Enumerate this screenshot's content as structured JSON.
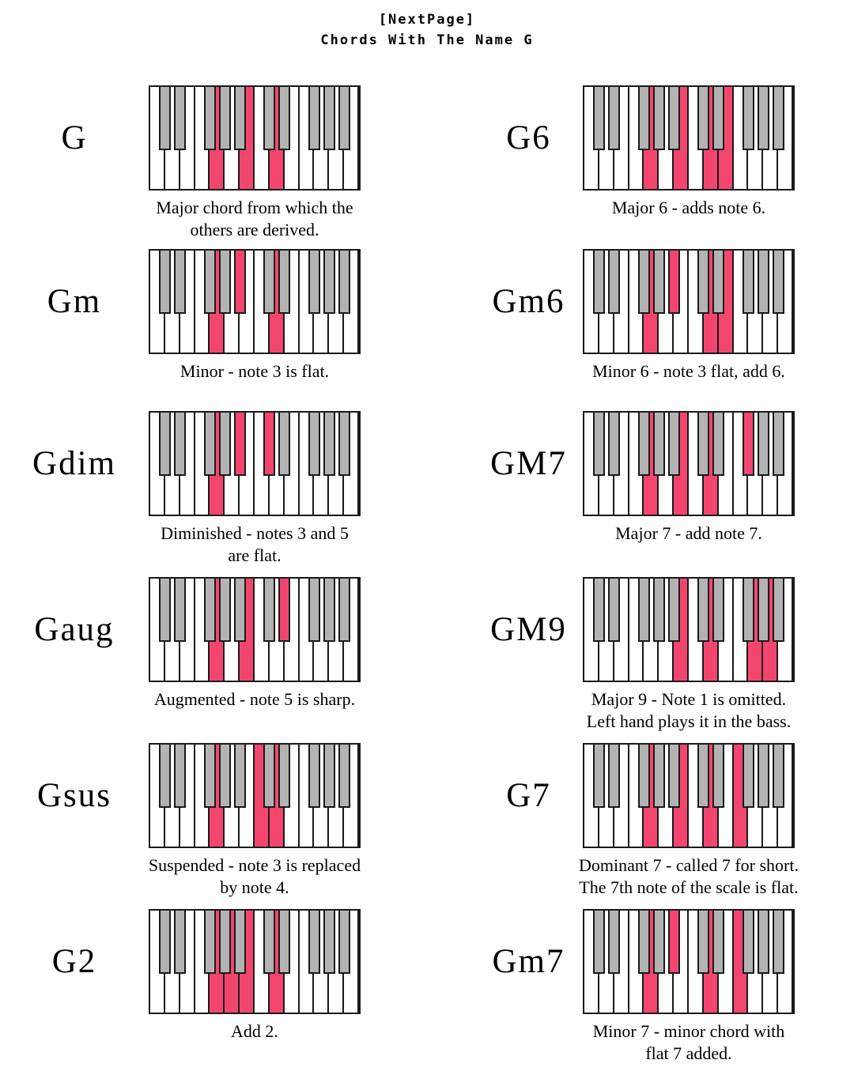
{
  "page": {
    "header": "[NextPage]",
    "title": "Chords With The Name G"
  },
  "colors": {
    "highlight_pink": "#f3466f",
    "black_key_gray": "#b3b3b3",
    "key_border": "#1a1a1a"
  },
  "keyboard": {
    "white_note_names": [
      "C",
      "D",
      "E",
      "F",
      "G",
      "A",
      "B",
      "C",
      "D",
      "E",
      "F",
      "G",
      "A",
      "B"
    ],
    "black_after_white": [
      1,
      2,
      4,
      5,
      6,
      8,
      9,
      11,
      12,
      13
    ],
    "black_note_names": [
      "C#",
      "D#",
      "F#",
      "G#",
      "A#",
      "C#",
      "D#",
      "F#",
      "G#",
      "A#"
    ]
  },
  "chords": [
    {
      "label": "G",
      "column": "left",
      "white_highlights": [
        5,
        7,
        9
      ],
      "black_highlights": [],
      "caption_lines": [
        "Major chord from which the",
        "others are derived."
      ]
    },
    {
      "label": "G6",
      "column": "right",
      "white_highlights": [
        5,
        7,
        9,
        10
      ],
      "black_highlights": [],
      "caption_lines": [
        "Major 6 - adds note 6."
      ]
    },
    {
      "label": "Gm",
      "column": "left",
      "white_highlights": [
        5,
        9
      ],
      "black_highlights": [
        6
      ],
      "caption_lines": [
        "Minor - note 3 is flat."
      ]
    },
    {
      "label": "Gm6",
      "column": "right",
      "white_highlights": [
        5,
        9,
        10
      ],
      "black_highlights": [
        6
      ],
      "caption_lines": [
        "Minor 6 - note 3 flat, add 6."
      ]
    },
    {
      "label": "Gdim",
      "column": "left",
      "white_highlights": [
        5
      ],
      "black_highlights": [
        6,
        8
      ],
      "caption_lines": [
        "Diminished - notes 3 and 5",
        "are flat."
      ]
    },
    {
      "label": "GM7",
      "column": "right",
      "white_highlights": [
        5,
        7,
        9
      ],
      "black_highlights": [
        11
      ],
      "caption_lines": [
        "Major 7 - add note 7."
      ]
    },
    {
      "label": "Gaug",
      "column": "left",
      "white_highlights": [
        5,
        7
      ],
      "black_highlights": [
        9
      ],
      "caption_lines": [
        "Augmented - note 5 is sharp."
      ]
    },
    {
      "label": "GM9",
      "column": "right",
      "white_highlights": [
        7,
        9,
        12,
        13
      ],
      "black_highlights": [],
      "caption_lines": [
        "Major 9 - Note 1 is omitted.",
        "Left hand plays it in the bass."
      ]
    },
    {
      "label": "Gsus",
      "column": "left",
      "white_highlights": [
        5,
        8,
        9
      ],
      "black_highlights": [],
      "caption_lines": [
        "Suspended - note 3 is replaced",
        "by note 4."
      ]
    },
    {
      "label": "G7",
      "column": "right",
      "white_highlights": [
        5,
        7,
        9,
        11
      ],
      "black_highlights": [],
      "caption_lines": [
        "Dominant 7 - called 7 for short.",
        "The 7th note of the scale is flat."
      ]
    },
    {
      "label": "G2",
      "column": "left",
      "white_highlights": [
        5,
        6,
        7,
        9
      ],
      "black_highlights": [],
      "caption_lines": [
        "Add 2."
      ]
    },
    {
      "label": "Gm7",
      "column": "right",
      "white_highlights": [
        5,
        9,
        11
      ],
      "black_highlights": [
        6
      ],
      "caption_lines": [
        "Minor 7 - minor chord with",
        "flat 7 added."
      ]
    }
  ]
}
